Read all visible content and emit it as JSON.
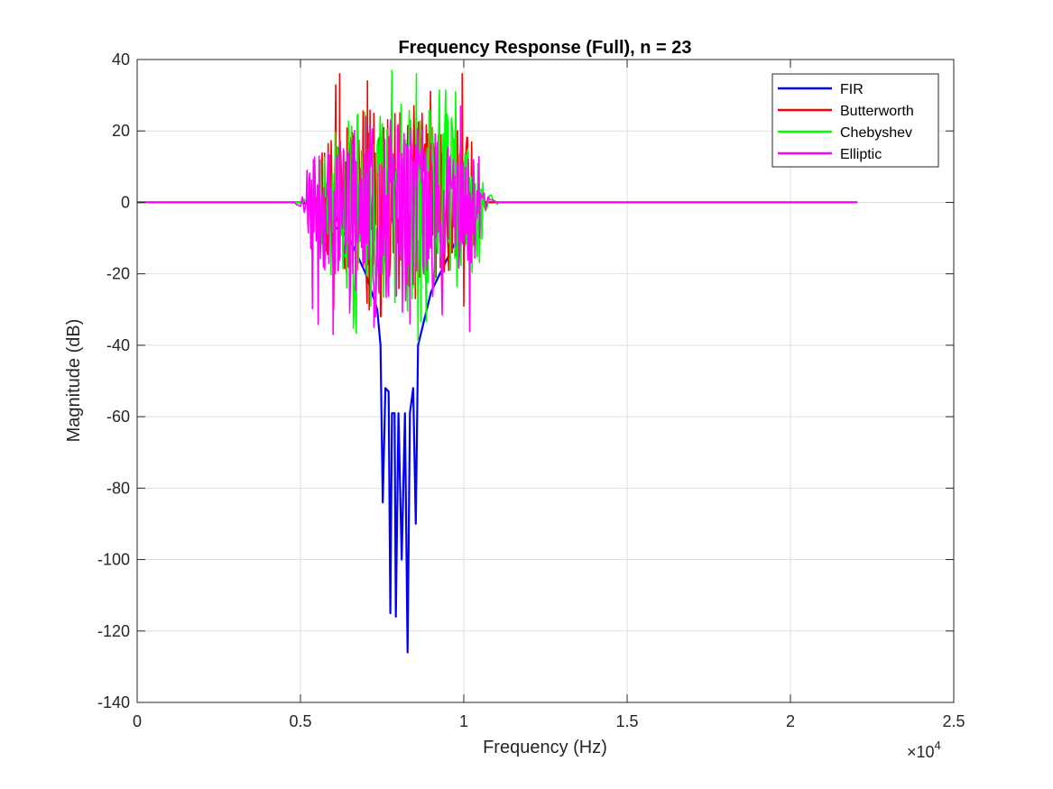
{
  "chart_data": {
    "type": "line",
    "title": "Frequency Response (Full), n = 23",
    "xlabel": "Frequency (Hz)",
    "ylabel": "Magnitude (dB)",
    "xlim": [
      0,
      25000
    ],
    "ylim": [
      -140,
      40
    ],
    "x_scale_exponent_label": "×10",
    "x_scale_exponent": "4",
    "x_ticks": [
      0,
      5000,
      10000,
      15000,
      20000,
      25000
    ],
    "x_tick_labels": [
      "0",
      "0.5",
      "1",
      "1.5",
      "2",
      "2.5"
    ],
    "y_ticks": [
      40,
      20,
      0,
      -20,
      -40,
      -60,
      -80,
      -100,
      -120,
      -140
    ],
    "y_tick_labels": [
      "40",
      "20",
      "0",
      "-20",
      "-40",
      "-60",
      "-80",
      "-100",
      "-120",
      "-140"
    ],
    "grid": true,
    "legend_position": "top-right",
    "x_range_plotted": [
      0,
      22050
    ],
    "series": [
      {
        "name": "FIR",
        "color": "#0000ff",
        "points": [
          [
            0,
            0
          ],
          [
            5000,
            0
          ],
          [
            5400,
            -1
          ],
          [
            5800,
            -5
          ],
          [
            6500,
            -10
          ],
          [
            7000,
            -20
          ],
          [
            7350,
            -30
          ],
          [
            7450,
            -40
          ],
          [
            7520,
            -84
          ],
          [
            7600,
            -52
          ],
          [
            7700,
            -53
          ],
          [
            7750,
            -115
          ],
          [
            7800,
            -59
          ],
          [
            7880,
            -59
          ],
          [
            7920,
            -116
          ],
          [
            8000,
            -59
          ],
          [
            8100,
            -100
          ],
          [
            8200,
            -59
          ],
          [
            8280,
            -126
          ],
          [
            8350,
            -59
          ],
          [
            8450,
            -52
          ],
          [
            8530,
            -90
          ],
          [
            8600,
            -40
          ],
          [
            9000,
            -25
          ],
          [
            9800,
            -10
          ],
          [
            10300,
            -2
          ],
          [
            10600,
            0
          ],
          [
            22050,
            0
          ]
        ]
      },
      {
        "name": "Butterworth",
        "color": "#ff0000",
        "band": [
          5600,
          10400
        ],
        "noise_max": 36,
        "noise_min": -32,
        "peaks": [
          [
            6200,
            36
          ],
          [
            7050,
            34
          ],
          [
            9950,
            36
          ],
          [
            7450,
            -32
          ],
          [
            10000,
            -29
          ]
        ]
      },
      {
        "name": "Chebyshev",
        "color": "#00ff00",
        "band": [
          5500,
          10600
        ],
        "noise_max": 37,
        "noise_min": -39,
        "peaks": [
          [
            7800,
            37
          ],
          [
            8550,
            36
          ],
          [
            8600,
            -39
          ],
          [
            9750,
            31
          ]
        ]
      },
      {
        "name": "Elliptic",
        "color": "#ff00ff",
        "band": [
          5200,
          10500
        ],
        "noise_max": 29,
        "noise_min": -37,
        "peaks": [
          [
            6000,
            -37
          ],
          [
            7250,
            -35
          ],
          [
            8350,
            -34
          ],
          [
            9900,
            27
          ]
        ]
      }
    ]
  }
}
